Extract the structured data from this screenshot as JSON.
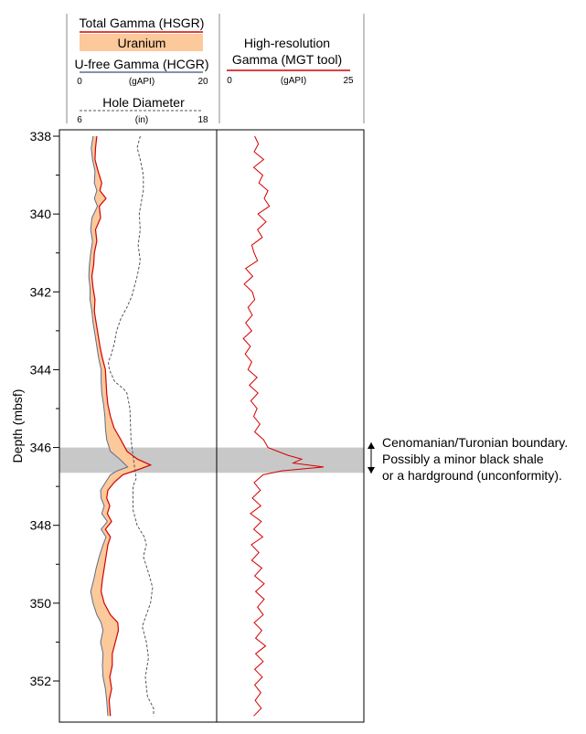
{
  "header": {
    "track1": {
      "total_gamma": "Total Gamma (HSGR)",
      "uranium": "Uranium",
      "ufree_gamma": "U-free Gamma (HCGR)",
      "scale_min": "0",
      "scale_unit": "(gAPI)",
      "scale_max": "20",
      "hole_diameter": "Hole Diameter",
      "hd_min": "6",
      "hd_unit": "(in)",
      "hd_max": "18"
    },
    "track2": {
      "title_line1": "High-resolution",
      "title_line2": "Gamma (MGT tool)",
      "scale_min": "0",
      "scale_unit": "(gAPI)",
      "scale_max": "25"
    }
  },
  "annotation": {
    "line1": "Cenomanian/Turonian boundary.",
    "line2": "Possibly a minor black shale",
    "line3": "or a hardground (unconformity)."
  },
  "colors": {
    "total_gamma": "#d40000",
    "uranium_fill": "#fcc99a",
    "ufree_gamma": "#5b6e8f",
    "hole_diameter": "#555555",
    "mgt": "#d40000",
    "boundary_band": "#c8c8c8"
  },
  "chart_data": {
    "type": "line",
    "ylabel": "Depth (mbsf)",
    "ylim": [
      338,
      353
    ],
    "y_reversed": true,
    "yticks": [
      338,
      340,
      342,
      344,
      346,
      348,
      350,
      352
    ],
    "boundary_band": [
      346.0,
      346.65
    ],
    "tracks": [
      {
        "name": "standard-gamma",
        "xlim": [
          0,
          20
        ],
        "series": [
          {
            "name": "Total Gamma (HSGR)",
            "unit": "gAPI",
            "points": [
              [
                2.8,
                338
              ],
              [
                2.6,
                338.3
              ],
              [
                2.5,
                338.6
              ],
              [
                3,
                338.9
              ],
              [
                3.6,
                339.2
              ],
              [
                3.3,
                339.4
              ],
              [
                4.3,
                339.6
              ],
              [
                3.2,
                339.8
              ],
              [
                3.4,
                340.1
              ],
              [
                2.6,
                340.4
              ],
              [
                2.8,
                340.7
              ],
              [
                2.4,
                341
              ],
              [
                2.3,
                341.3
              ],
              [
                2,
                341.6
              ],
              [
                2.2,
                341.9
              ],
              [
                2.5,
                342.2
              ],
              [
                2.4,
                342.5
              ],
              [
                2.7,
                342.8
              ],
              [
                3,
                343.1
              ],
              [
                3.3,
                343.4
              ],
              [
                3.7,
                343.7
              ],
              [
                4.2,
                344
              ],
              [
                4.3,
                344.3
              ],
              [
                4.4,
                344.6
              ],
              [
                4.6,
                344.9
              ],
              [
                5,
                345.2
              ],
              [
                5.6,
                345.5
              ],
              [
                6.7,
                345.8
              ],
              [
                7.7,
                346.1
              ],
              [
                9.4,
                346.3
              ],
              [
                11.5,
                346.45
              ],
              [
                9.8,
                346.55
              ],
              [
                7,
                346.7
              ],
              [
                5.6,
                346.9
              ],
              [
                4.6,
                347.1
              ],
              [
                4.4,
                347.3
              ],
              [
                4.9,
                347.5
              ],
              [
                4.5,
                347.7
              ],
              [
                5.2,
                347.9
              ],
              [
                4.2,
                348.1
              ],
              [
                5,
                348.3
              ],
              [
                4.6,
                348.5
              ],
              [
                4.3,
                348.8
              ],
              [
                4,
                349.1
              ],
              [
                3.7,
                349.4
              ],
              [
                3.5,
                349.7
              ],
              [
                4,
                350
              ],
              [
                5,
                350.3
              ],
              [
                6.2,
                350.5
              ],
              [
                6.3,
                350.7
              ],
              [
                5.8,
                351
              ],
              [
                5.3,
                351.3
              ],
              [
                5.3,
                351.6
              ],
              [
                4.9,
                351.9
              ],
              [
                5.2,
                352.2
              ],
              [
                4.8,
                352.5
              ],
              [
                5,
                352.9
              ]
            ]
          },
          {
            "name": "U-free Gamma (HCGR)",
            "unit": "gAPI",
            "points": [
              [
                2.2,
                338
              ],
              [
                1.9,
                338.3
              ],
              [
                2.1,
                338.6
              ],
              [
                2.5,
                338.9
              ],
              [
                2.4,
                339.2
              ],
              [
                2.8,
                339.4
              ],
              [
                2.4,
                339.6
              ],
              [
                2.9,
                339.8
              ],
              [
                2,
                340.1
              ],
              [
                1.8,
                340.4
              ],
              [
                2.1,
                340.7
              ],
              [
                1.8,
                341
              ],
              [
                1.6,
                341.3
              ],
              [
                1.5,
                341.6
              ],
              [
                1.7,
                341.9
              ],
              [
                1.7,
                342.2
              ],
              [
                2,
                342.5
              ],
              [
                2.2,
                342.8
              ],
              [
                2.5,
                343.1
              ],
              [
                2.8,
                343.4
              ],
              [
                3.1,
                343.7
              ],
              [
                3.5,
                344
              ],
              [
                3.5,
                344.3
              ],
              [
                3.6,
                344.6
              ],
              [
                3.9,
                344.9
              ],
              [
                4.1,
                345.2
              ],
              [
                4.2,
                345.5
              ],
              [
                4.4,
                345.8
              ],
              [
                5,
                346.1
              ],
              [
                6.5,
                346.3
              ],
              [
                7.8,
                346.5
              ],
              [
                6.1,
                346.6
              ],
              [
                5,
                346.7
              ],
              [
                4.2,
                346.9
              ],
              [
                3.4,
                347.1
              ],
              [
                3.5,
                347.3
              ],
              [
                4,
                347.5
              ],
              [
                3.6,
                347.7
              ],
              [
                4.5,
                347.9
              ],
              [
                3.5,
                348.1
              ],
              [
                4.3,
                348.3
              ],
              [
                3.8,
                348.5
              ],
              [
                3.2,
                348.8
              ],
              [
                2.7,
                349.1
              ],
              [
                2.3,
                349.4
              ],
              [
                1.8,
                349.7
              ],
              [
                2.2,
                350
              ],
              [
                2.8,
                350.3
              ],
              [
                3.5,
                350.5
              ],
              [
                3.8,
                350.7
              ],
              [
                3.4,
                351
              ],
              [
                3.8,
                351.3
              ],
              [
                3.7,
                351.6
              ],
              [
                3.8,
                351.9
              ],
              [
                4.2,
                352.2
              ],
              [
                4.4,
                352.5
              ],
              [
                4.6,
                352.9
              ]
            ]
          },
          {
            "name": "Hole Diameter",
            "unit": "in",
            "xlim": [
              6,
              18
            ],
            "points": [
              [
                11.9,
                338
              ],
              [
                11.6,
                338.3
              ],
              [
                11.9,
                338.6
              ],
              [
                12.2,
                339
              ],
              [
                12.2,
                339.4
              ],
              [
                12,
                339.7
              ],
              [
                11.8,
                340
              ],
              [
                11.9,
                340.4
              ],
              [
                11.7,
                340.8
              ],
              [
                11.9,
                341.2
              ],
              [
                11.6,
                341.6
              ],
              [
                11.3,
                341.9
              ],
              [
                11.1,
                342.1
              ],
              [
                10.6,
                342.4
              ],
              [
                10,
                342.7
              ],
              [
                9.6,
                343
              ],
              [
                9.4,
                343.3
              ],
              [
                9.1,
                343.6
              ],
              [
                8.8,
                343.8
              ],
              [
                8.9,
                344
              ],
              [
                9.4,
                344.3
              ],
              [
                10.3,
                344.5
              ],
              [
                10.6,
                344.6
              ],
              [
                10.9,
                345
              ],
              [
                11,
                345.8
              ],
              [
                11.2,
                346.2
              ],
              [
                11.5,
                346.8
              ],
              [
                11.2,
                347
              ],
              [
                11.2,
                347.6
              ],
              [
                11.6,
                348
              ],
              [
                12.3,
                348.3
              ],
              [
                12.5,
                348.5
              ],
              [
                12.2,
                348.8
              ],
              [
                12.8,
                349.3
              ],
              [
                13.1,
                349.6
              ],
              [
                12.9,
                350
              ],
              [
                12.5,
                350.3
              ],
              [
                12.1,
                350.6
              ],
              [
                12.5,
                351
              ],
              [
                12.7,
                351.4
              ],
              [
                12.4,
                351.9
              ],
              [
                12.6,
                352.4
              ],
              [
                13.2,
                352.7
              ],
              [
                13.2,
                352.9
              ]
            ]
          }
        ]
      },
      {
        "name": "high-resolution-gamma",
        "xlim": [
          0,
          25
        ],
        "series": [
          {
            "name": "High-resolution Gamma (MGT tool)",
            "unit": "gAPI",
            "points": [
              [
                5.3,
                338
              ],
              [
                6.1,
                338.2
              ],
              [
                5.2,
                338.4
              ],
              [
                7.2,
                338.6
              ],
              [
                5.1,
                338.8
              ],
              [
                7,
                339
              ],
              [
                6.2,
                339.2
              ],
              [
                8.1,
                339.4
              ],
              [
                7.3,
                339.6
              ],
              [
                8.4,
                339.8
              ],
              [
                6,
                340
              ],
              [
                7.7,
                340.2
              ],
              [
                5.9,
                340.4
              ],
              [
                6.9,
                340.6
              ],
              [
                4.7,
                340.8
              ],
              [
                5.2,
                341
              ],
              [
                5.9,
                341.2
              ],
              [
                3.4,
                341.4
              ],
              [
                4.9,
                341.6
              ],
              [
                3.1,
                341.8
              ],
              [
                4.8,
                342
              ],
              [
                5.3,
                342.2
              ],
              [
                3.9,
                342.4
              ],
              [
                4.8,
                342.6
              ],
              [
                3.4,
                342.8
              ],
              [
                4.7,
                343
              ],
              [
                2.9,
                343.2
              ],
              [
                4.4,
                343.4
              ],
              [
                3.3,
                343.6
              ],
              [
                4.7,
                343.8
              ],
              [
                3.9,
                344
              ],
              [
                5.8,
                344.2
              ],
              [
                4.2,
                344.4
              ],
              [
                6,
                344.6
              ],
              [
                4.5,
                344.8
              ],
              [
                5.8,
                345
              ],
              [
                5.1,
                345.2
              ],
              [
                6.4,
                345.4
              ],
              [
                5.3,
                345.6
              ],
              [
                7.2,
                345.8
              ],
              [
                8.1,
                346
              ],
              [
                12.3,
                346.2
              ],
              [
                15.2,
                346.3
              ],
              [
                13.4,
                346.4
              ],
              [
                19.8,
                346.5
              ],
              [
                11,
                346.6
              ],
              [
                7.1,
                346.7
              ],
              [
                5.2,
                346.9
              ],
              [
                6.5,
                347.1
              ],
              [
                4.8,
                347.3
              ],
              [
                6.6,
                347.5
              ],
              [
                4.4,
                347.7
              ],
              [
                6.7,
                347.9
              ],
              [
                5.1,
                348.1
              ],
              [
                7,
                348.3
              ],
              [
                4.6,
                348.5
              ],
              [
                6.2,
                348.7
              ],
              [
                4.7,
                348.9
              ],
              [
                6.8,
                349.1
              ],
              [
                5.3,
                349.3
              ],
              [
                7.3,
                349.5
              ],
              [
                5.5,
                349.7
              ],
              [
                7.3,
                349.9
              ],
              [
                5.9,
                350.1
              ],
              [
                7.1,
                350.3
              ],
              [
                5.2,
                350.5
              ],
              [
                6.8,
                350.7
              ],
              [
                5.5,
                350.9
              ],
              [
                7.6,
                351.1
              ],
              [
                5.5,
                351.3
              ],
              [
                7.1,
                351.5
              ],
              [
                5.3,
                351.7
              ],
              [
                6.9,
                351.9
              ],
              [
                5.3,
                352.1
              ],
              [
                6.6,
                352.3
              ],
              [
                5.4,
                352.5
              ],
              [
                6.7,
                352.7
              ],
              [
                5.1,
                352.9
              ]
            ]
          }
        ]
      }
    ]
  }
}
